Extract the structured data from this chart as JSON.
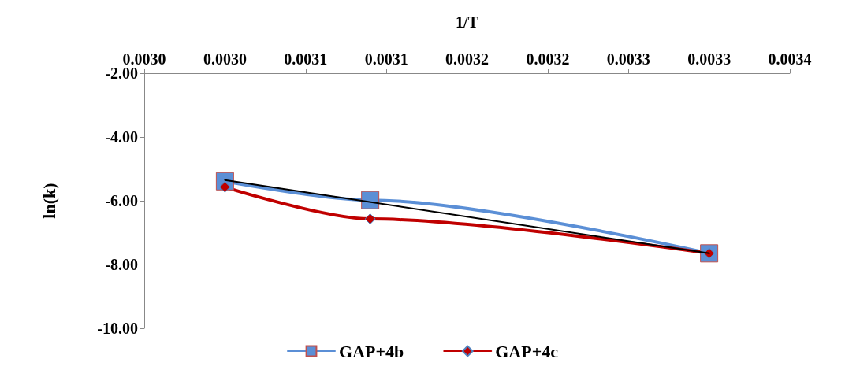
{
  "chart_data": {
    "type": "line",
    "xlabel": "1/T",
    "ylabel": "ln(k)",
    "x": [
      0.003,
      0.00309,
      0.0033
    ],
    "series": [
      {
        "name": "GAP+4b",
        "color": "#5b8fd6",
        "marker": "square",
        "values": [
          -5.39,
          -5.98,
          -7.65
        ]
      },
      {
        "name": "GAP+4c",
        "color": "#c00000",
        "marker": "diamond",
        "values": [
          -5.57,
          -6.57,
          -7.65
        ]
      },
      {
        "type": "line",
        "color": "#000000",
        "marker": "none",
        "x": [
          0.003,
          0.0033
        ],
        "values": [
          -5.35,
          -7.65
        ]
      }
    ],
    "xlim": [
      0.00295,
      0.00335
    ],
    "xticks": [
      {
        "value": 0.00295,
        "label": "0.0030"
      },
      {
        "value": 0.003,
        "label": "0.0030"
      },
      {
        "value": 0.00305,
        "label": "0.0031"
      },
      {
        "value": 0.0031,
        "label": "0.0031"
      },
      {
        "value": 0.00315,
        "label": "0.0032"
      },
      {
        "value": 0.0032,
        "label": "0.0032"
      },
      {
        "value": 0.00325,
        "label": "0.0033"
      },
      {
        "value": 0.0033,
        "label": "0.0033"
      },
      {
        "value": 0.00335,
        "label": "0.0034"
      }
    ],
    "ylim": [
      -10,
      -2
    ],
    "yticks": [
      {
        "value": -10,
        "label": "-10.00"
      },
      {
        "value": -8,
        "label": "-8.00"
      },
      {
        "value": -6,
        "label": "-6.00"
      },
      {
        "value": -4,
        "label": "-4.00"
      },
      {
        "value": -2,
        "label": "-2.00"
      }
    ],
    "grid": false,
    "legend": "bottom",
    "line_style": "solid"
  }
}
